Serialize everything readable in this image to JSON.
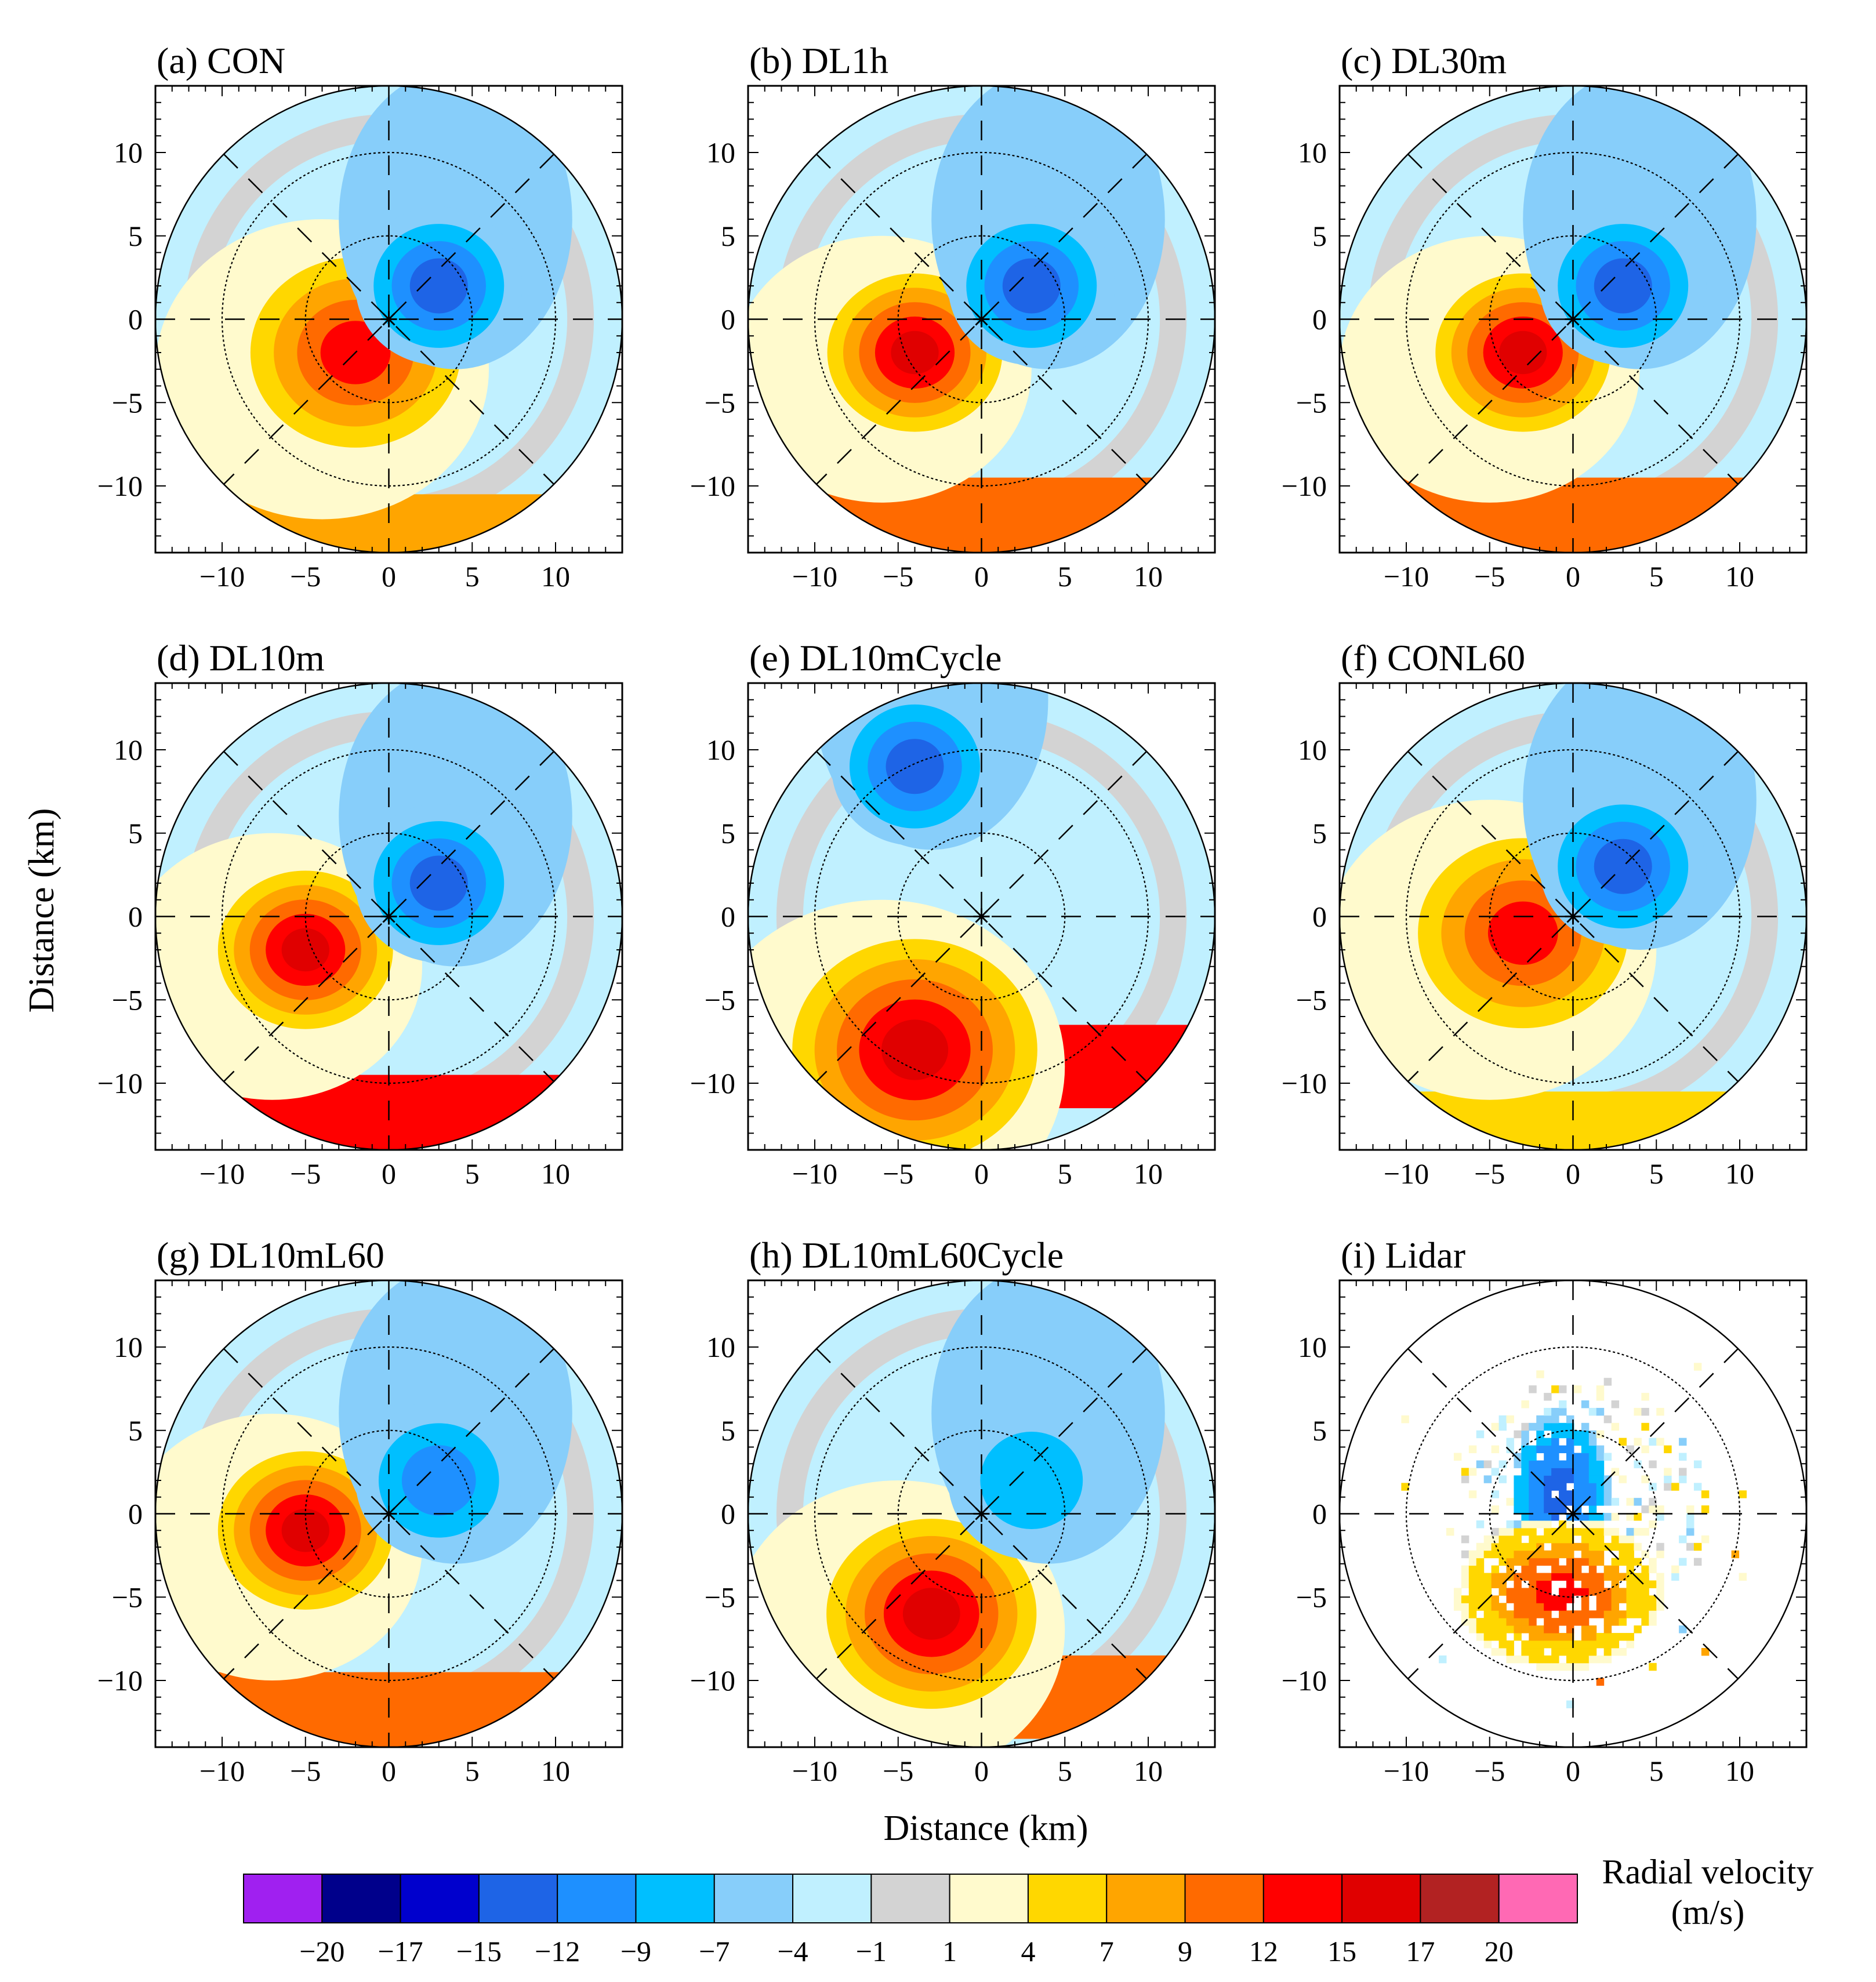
{
  "chart_data": {
    "type": "heatmap",
    "xlabel": "Distance (km)",
    "ylabel": "Distance (km)",
    "xlim": [
      -14,
      14
    ],
    "ylim": [
      -14,
      14
    ],
    "x_ticks": [
      "−10",
      "−5",
      "0",
      "5",
      "10"
    ],
    "y_ticks": [
      "10",
      "5",
      "0",
      "−5",
      "−10"
    ],
    "range_rings_km": [
      5,
      10,
      14
    ],
    "panels": [
      {
        "label": "(a) CON",
        "neg": {
          "x": 3,
          "y": 2,
          "r": 5,
          "v": -12
        },
        "pos": {
          "x": -2,
          "y": -2,
          "r": 6,
          "v": 12
        },
        "band": {
          "y": -12,
          "v": 7
        }
      },
      {
        "label": "(b) DL1h",
        "neg": {
          "x": 3,
          "y": 2,
          "r": 5,
          "v": -12
        },
        "pos": {
          "x": -4,
          "y": -2,
          "r": 5,
          "v": 15
        },
        "band": {
          "y": -11,
          "v": 9
        }
      },
      {
        "label": "(c) DL30m",
        "neg": {
          "x": 3,
          "y": 2,
          "r": 5,
          "v": -12
        },
        "pos": {
          "x": -3,
          "y": -2,
          "r": 5,
          "v": 15
        },
        "band": {
          "y": -11,
          "v": 9
        }
      },
      {
        "label": "(d) DL10m",
        "neg": {
          "x": 3,
          "y": 2,
          "r": 5,
          "v": -12
        },
        "pos": {
          "x": -5,
          "y": -2,
          "r": 5,
          "v": 15
        },
        "band": {
          "y": -11,
          "v": 12
        }
      },
      {
        "label": "(e) DL10mCycle",
        "neg": {
          "x": -4,
          "y": 9,
          "r": 5,
          "v": -12
        },
        "pos": {
          "x": -4,
          "y": -8,
          "r": 7,
          "v": 15
        },
        "band": {
          "y": -8,
          "v": 12
        }
      },
      {
        "label": "(f) CONL60",
        "neg": {
          "x": 3,
          "y": 3,
          "r": 5,
          "v": -12
        },
        "pos": {
          "x": -3,
          "y": -1,
          "r": 6,
          "v": 12
        },
        "band": {
          "y": -12,
          "v": 4
        }
      },
      {
        "label": "(g) DL10mL60",
        "neg": {
          "x": 3,
          "y": 2,
          "r": 5,
          "v": -9
        },
        "pos": {
          "x": -5,
          "y": -1,
          "r": 5,
          "v": 15
        },
        "band": {
          "y": -11,
          "v": 9
        }
      },
      {
        "label": "(h) DL10mL60Cycle",
        "neg": {
          "x": 3,
          "y": 2,
          "r": 5,
          "v": -7
        },
        "pos": {
          "x": -3,
          "y": -6,
          "r": 6,
          "v": 15
        },
        "band": {
          "y": -10,
          "v": 9
        }
      },
      {
        "label": "(i) Lidar",
        "neg": {
          "x": -1,
          "y": 1,
          "r": 3,
          "v": -15
        },
        "pos": {
          "x": -1,
          "y": -5,
          "r": 5,
          "v": 15
        },
        "band": {
          "y": -8,
          "v": 9
        },
        "sparse": true
      }
    ],
    "colorbar": {
      "title_lines": [
        "Radial velocity",
        "(m/s)"
      ],
      "tick_labels": [
        "−20",
        "−17",
        "−15",
        "−12",
        "−9",
        "−7",
        "−4",
        "−1",
        "1",
        "4",
        "7",
        "9",
        "12",
        "15",
        "17",
        "20"
      ],
      "levels": [
        -20,
        -17,
        -15,
        -12,
        -9,
        -7,
        -4,
        -1,
        1,
        4,
        7,
        9,
        12,
        15,
        17,
        20
      ],
      "colors": [
        "#a020f0",
        "#00008b",
        "#0000cd",
        "#1e64e6",
        "#1e90ff",
        "#00bfff",
        "#87cefa",
        "#c0f0ff",
        "#d3d3d3",
        "#fffacd",
        "#ffd700",
        "#ffa500",
        "#ff6a00",
        "#ff0000",
        "#e00000",
        "#b22222",
        "#ff69b4"
      ]
    }
  }
}
